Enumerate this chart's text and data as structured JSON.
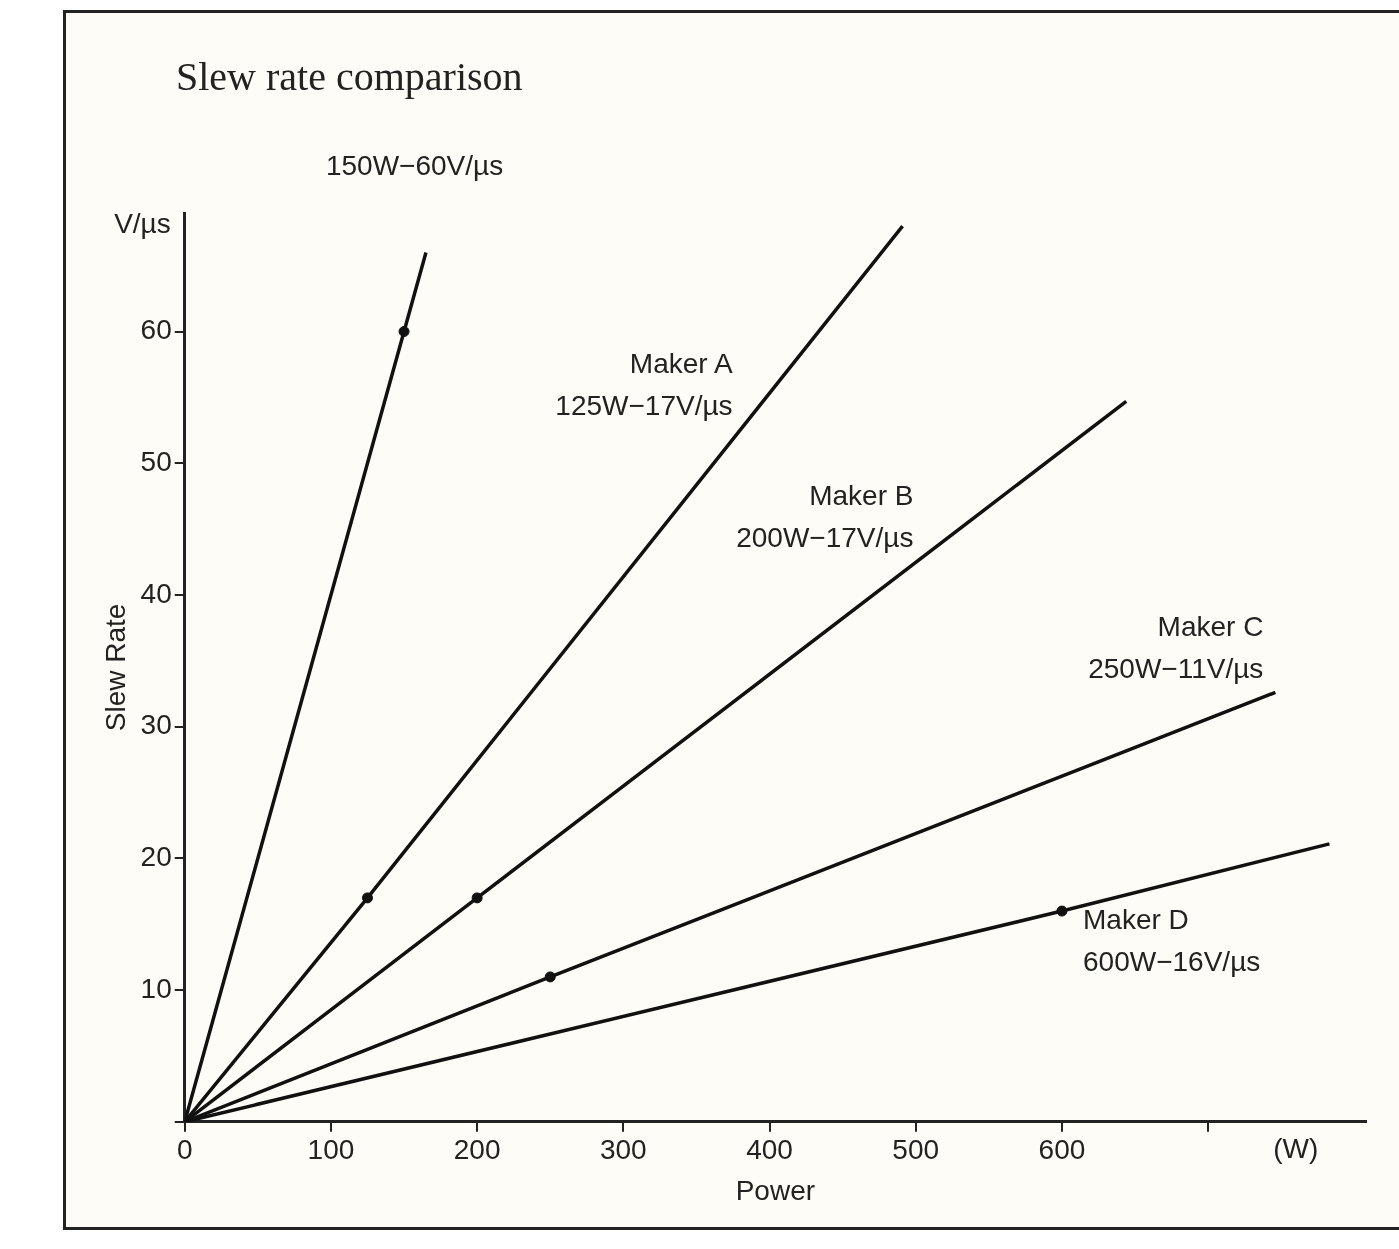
{
  "chart_data": {
    "type": "line",
    "title": "Slew rate comparison",
    "xlabel": "Power",
    "ylabel": "Slew Rate",
    "xlim": [
      0,
      808
    ],
    "xticks": [
      0,
      100,
      200,
      300,
      400,
      500,
      600,
      {
        "value": 700,
        "label": null
      }
    ],
    "ylim": [
      0,
      69
    ],
    "yticks": [
      {
        "value": 0,
        "label": null
      },
      10,
      20,
      30,
      40,
      50,
      60
    ],
    "grid": false,
    "legend": false,
    "marker": "none",
    "line_style": "solid",
    "series": [
      {
        "x": [
          0,
          150,
          165
        ],
        "values": [
          0,
          60,
          66
        ],
        "color": "#111111"
      },
      {
        "name": "Maker A",
        "x": [
          0,
          125,
          491
        ],
        "values": [
          0,
          17,
          68
        ],
        "color": "#111111"
      },
      {
        "name": "Maker B",
        "x": [
          0,
          200,
          644
        ],
        "values": [
          0,
          17,
          54.7
        ],
        "color": "#111111"
      },
      {
        "name": "Maker C",
        "x": [
          0,
          250,
          746
        ],
        "values": [
          0,
          11,
          32.6
        ],
        "color": "#111111"
      },
      {
        "name": "Maker D",
        "x": [
          0,
          600,
          783
        ],
        "values": [
          0,
          16,
          21.1
        ],
        "color": "#111111"
      },
      {
        "type": "scatter",
        "marker": "circle",
        "x": [
          150,
          125,
          200,
          250,
          600
        ],
        "values": [
          60,
          17,
          17,
          11,
          16
        ],
        "color": "#111111"
      }
    ],
    "annotations": [
      "150W−60V/µs",
      "125W−17V/µs",
      "200W−17V/µs",
      "250W−11V/µs",
      "600W−16V/µs",
      "V/µs",
      "(W)"
    ]
  }
}
